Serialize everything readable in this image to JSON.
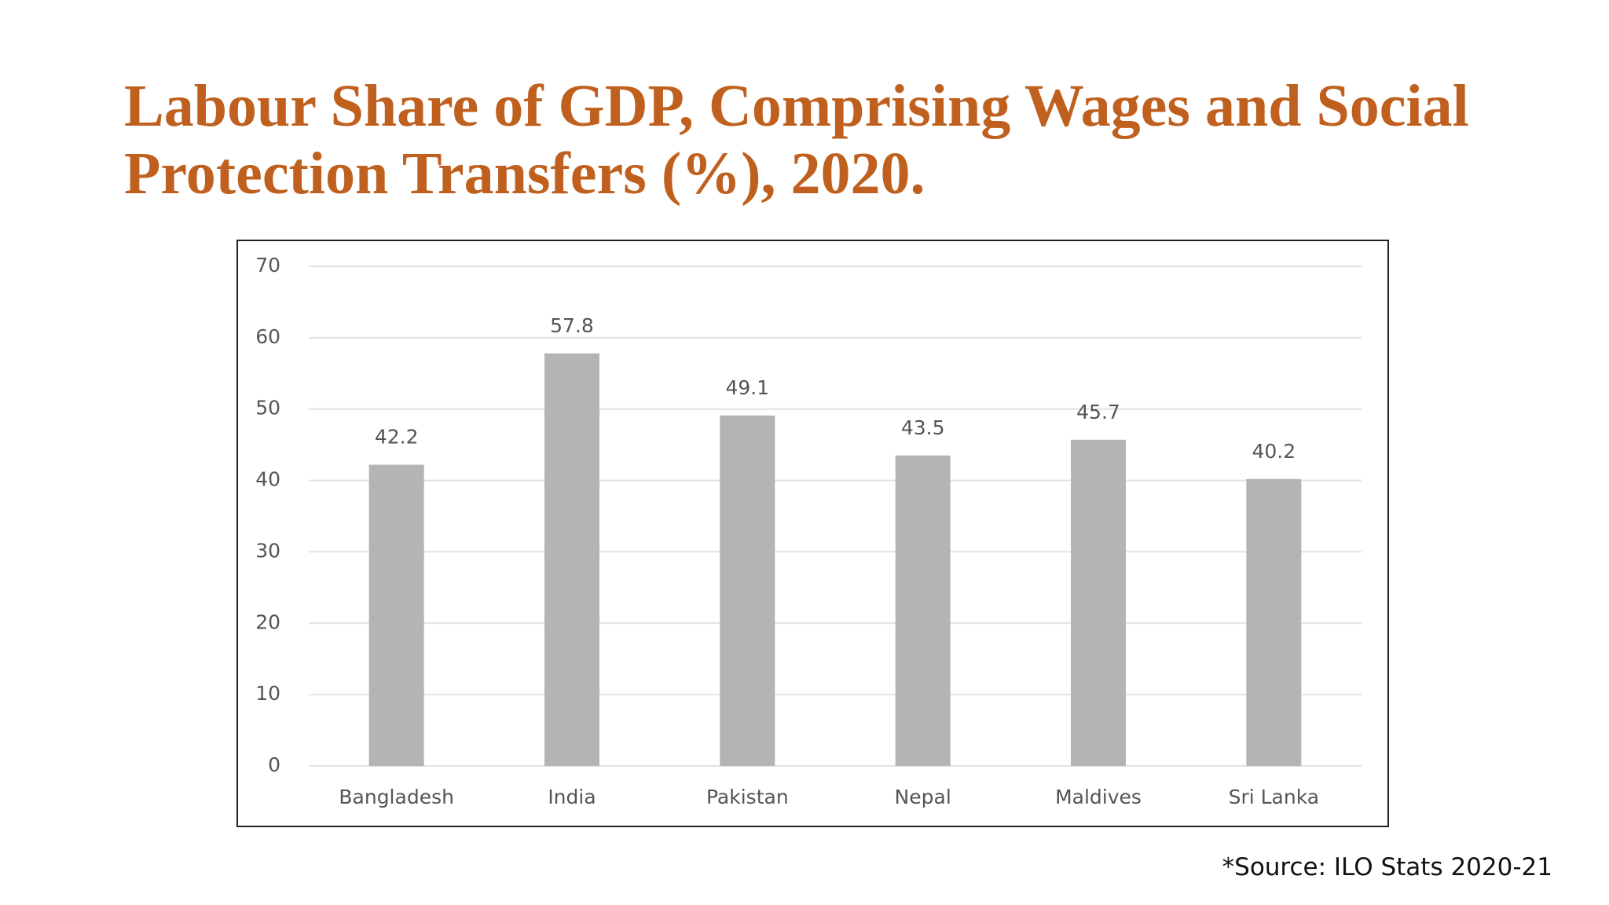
{
  "chart_data": {
    "type": "bar",
    "title": "Labour Share of GDP, Comprising Wages and Social Protection Transfers (%), 2020.",
    "categories": [
      "Bangladesh",
      "India",
      "Pakistan",
      "Nepal",
      "Maldives",
      "Sri Lanka"
    ],
    "values": [
      42.2,
      57.8,
      49.1,
      43.5,
      45.7,
      40.2
    ],
    "color": "#b4b4b4",
    "ylim": [
      0,
      70
    ],
    "yticks": [
      0,
      10,
      20,
      30,
      40,
      50,
      60,
      70
    ],
    "grid": true,
    "source": "*Source: ILO Stats 2020-21"
  }
}
